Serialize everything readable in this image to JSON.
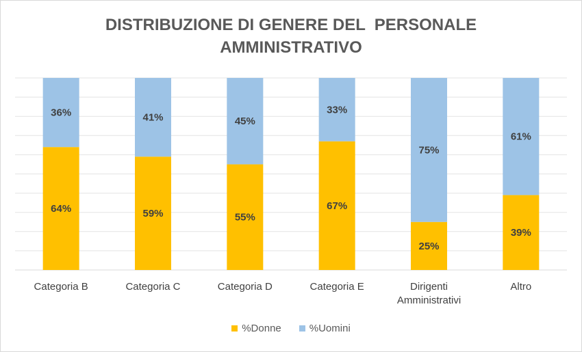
{
  "chart_data": {
    "type": "bar",
    "stacked": true,
    "percent_stacked": true,
    "title_lines": [
      "DISTRIBUZIONE DI GENERE DEL  PERSONALE",
      "AMMINISTRATIVO"
    ],
    "categories": [
      [
        "Categoria B"
      ],
      [
        "Categoria C"
      ],
      [
        "Categoria D"
      ],
      [
        "Categoria E"
      ],
      [
        "Dirigenti",
        "Amministrativi"
      ],
      [
        "Altro"
      ]
    ],
    "series": [
      {
        "name": "%Donne",
        "color": "#ffc000",
        "values": [
          64,
          59,
          55,
          67,
          25,
          39
        ],
        "labels": [
          "64%",
          "59%",
          "55%",
          "67%",
          "25%",
          "39%"
        ]
      },
      {
        "name": "%Uomini",
        "color": "#9dc3e6",
        "values": [
          36,
          41,
          45,
          33,
          75,
          61
        ],
        "labels": [
          "36%",
          "41%",
          "45%",
          "33%",
          "75%",
          "61%"
        ]
      }
    ],
    "ylim": [
      0,
      100
    ],
    "grid": true,
    "legend": "bottom"
  }
}
